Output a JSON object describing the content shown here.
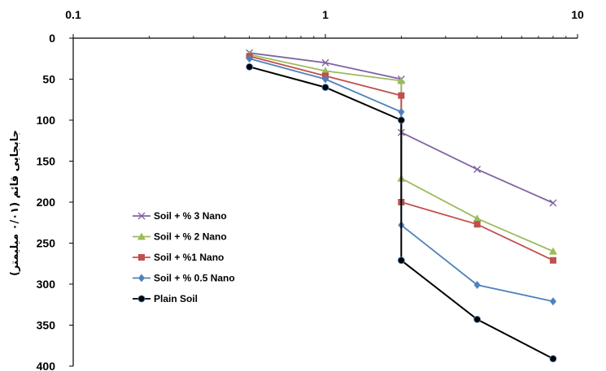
{
  "chart_data": {
    "type": "line",
    "title": "",
    "ylabel": "جابجایی قائم (۰/۰۱ میلیمتر)",
    "xlabel": "",
    "x_scale": "log",
    "xlim": [
      0.1,
      10
    ],
    "ylim": [
      0,
      400
    ],
    "y_inverted": true,
    "x_axis_position": "top",
    "x_ticks": [
      "0.1",
      "1",
      "10"
    ],
    "y_ticks": [
      "0",
      "50",
      "100",
      "150",
      "200",
      "250",
      "300",
      "350",
      "400"
    ],
    "grid": false,
    "legend_position": "left-middle",
    "series": [
      {
        "name": "Soil + % 3 Nano",
        "color": "#8064a2",
        "marker": "x",
        "x": [
          0.5,
          1,
          2,
          2,
          4,
          8
        ],
        "y": [
          18,
          30,
          50,
          115,
          160,
          201
        ]
      },
      {
        "name": "Soil + % 2 Nano",
        "color": "#9bbb59",
        "marker": "triangle",
        "x": [
          0.5,
          1,
          2,
          2,
          4,
          8
        ],
        "y": [
          20,
          40,
          52,
          171,
          220,
          260
        ]
      },
      {
        "name": "Soil + %1 Nano",
        "color": "#c0504d",
        "marker": "square",
        "x": [
          0.5,
          1,
          2,
          2,
          4,
          8
        ],
        "y": [
          22,
          46,
          70,
          200,
          227,
          271
        ]
      },
      {
        "name": "Soil + % 0.5 Nano",
        "color": "#4f81bd",
        "marker": "diamond",
        "x": [
          0.5,
          1,
          2,
          2,
          4,
          8
        ],
        "y": [
          25,
          50,
          90,
          228,
          301,
          321
        ]
      },
      {
        "name": "Plain Soil",
        "color": "#000000",
        "marker": "circle",
        "x": [
          0.5,
          1,
          2,
          2,
          4,
          8
        ],
        "y": [
          35,
          60,
          100,
          271,
          343,
          391
        ]
      }
    ]
  }
}
